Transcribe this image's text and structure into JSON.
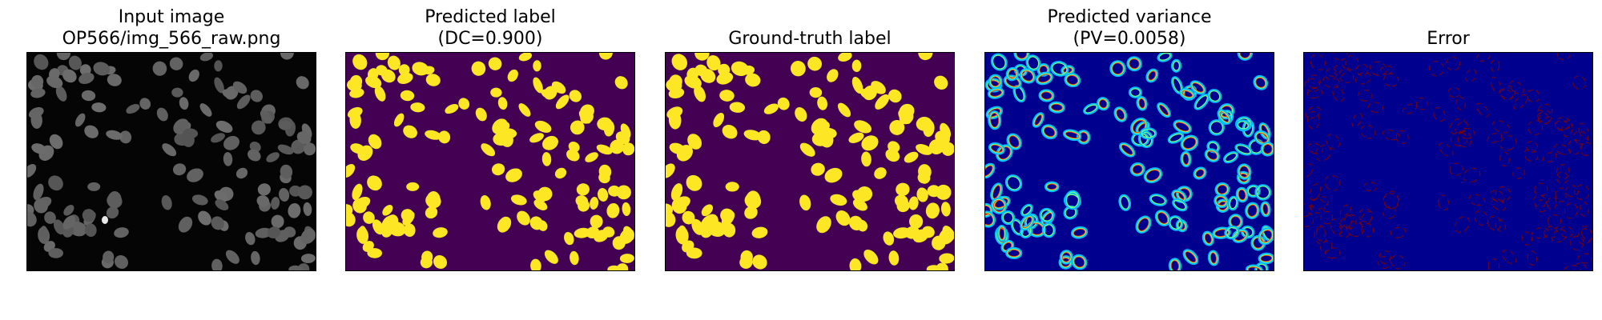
{
  "figure": {
    "panels": [
      {
        "id": "input",
        "title_lines": [
          "Input image",
          "OP566/img_566_raw.png"
        ]
      },
      {
        "id": "pred-label",
        "title_lines": [
          "Predicted label",
          "(DC=0.900)"
        ]
      },
      {
        "id": "gt-label",
        "title_lines": [
          "Ground-truth label"
        ]
      },
      {
        "id": "pred-var",
        "title_lines": [
          "Predicted variance",
          "(PV=0.0058)"
        ]
      },
      {
        "id": "error",
        "title_lines": [
          "Error"
        ]
      }
    ],
    "colors": {
      "input_bg": "#050505",
      "input_cell": "#585858",
      "label_bg": "#440154",
      "label_cell": "#fde725",
      "var_bg": "#00008f",
      "var_ring_outer": "#00bfff",
      "var_ring_mid": "#7fff7f",
      "var_ring_inner": "#ff3a00",
      "err_bg": "#00008f",
      "err_ring": "#7f0000"
    }
  }
}
